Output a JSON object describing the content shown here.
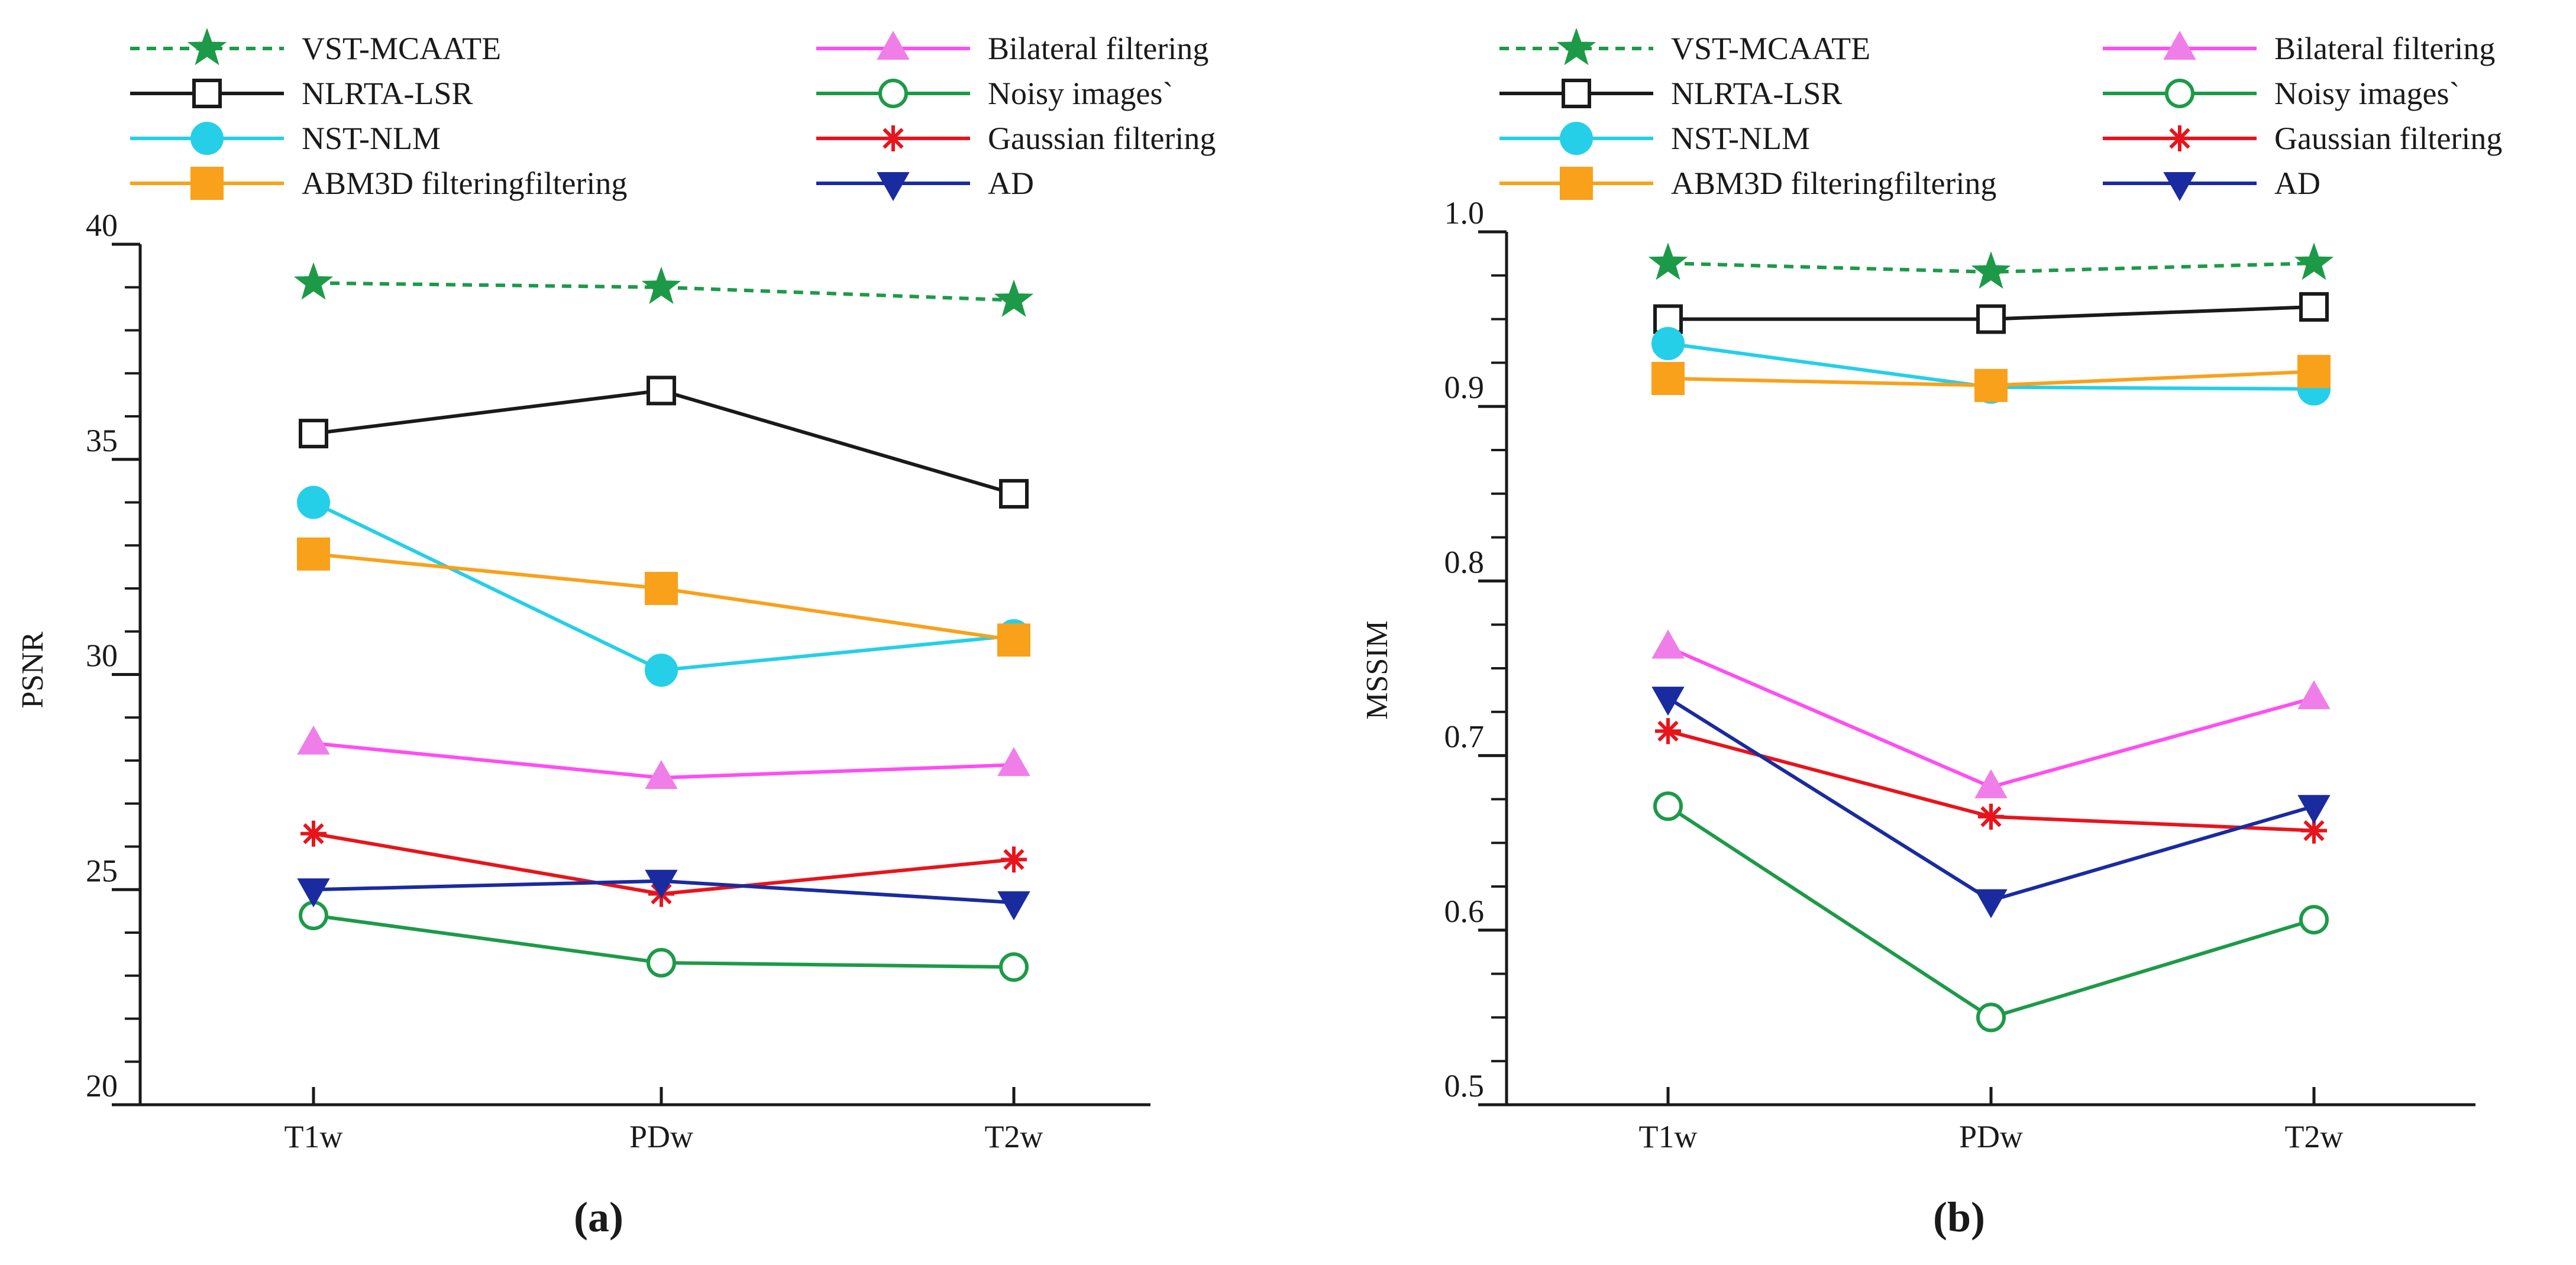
{
  "chart_data": [
    {
      "type": "line",
      "panel_label": "(a)",
      "title": "",
      "xlabel": "",
      "ylabel": "PSNR",
      "categories": [
        "T1w",
        "PDw",
        "T2w"
      ],
      "ylim": [
        20,
        40
      ],
      "yticks": [
        20,
        25,
        30,
        35,
        40
      ],
      "ytick_labels": [
        "20",
        "25",
        "30",
        "35",
        "40"
      ],
      "minor_step": 1,
      "grid": false,
      "legend_position": "top",
      "series": [
        {
          "name": "VST-MCAATE",
          "values": [
            39.1,
            39.0,
            38.7
          ]
        },
        {
          "name": "NLRTA-LSR",
          "values": [
            35.6,
            36.6,
            34.2
          ]
        },
        {
          "name": "NST-NLM",
          "values": [
            34.0,
            30.1,
            30.9
          ]
        },
        {
          "name": "ABM3D filteringfiltering",
          "values": [
            32.8,
            32.0,
            30.8
          ]
        },
        {
          "name": "Bilateral filtering",
          "values": [
            28.4,
            27.6,
            27.9
          ]
        },
        {
          "name": "Noisy images`",
          "values": [
            24.4,
            23.3,
            23.2
          ]
        },
        {
          "name": "Gaussian filtering",
          "values": [
            26.3,
            24.9,
            25.7
          ]
        },
        {
          "name": "AD",
          "values": [
            25.0,
            25.2,
            24.7
          ]
        }
      ]
    },
    {
      "type": "line",
      "panel_label": "(b)",
      "title": "",
      "xlabel": "",
      "ylabel": "MSSIM",
      "categories": [
        "T1w",
        "PDw",
        "T2w"
      ],
      "ylim": [
        0.5,
        1.0
      ],
      "yticks": [
        0.5,
        0.6,
        0.7,
        0.8,
        0.9,
        1.0
      ],
      "ytick_labels": [
        "0.5",
        "0.6",
        "0.7",
        "0.8",
        "0.9",
        "1.0"
      ],
      "minor_step": 0.025,
      "grid": false,
      "legend_position": "top",
      "series": [
        {
          "name": "VST-MCAATE",
          "values": [
            0.982,
            0.977,
            0.982
          ]
        },
        {
          "name": "NLRTA-LSR",
          "values": [
            0.95,
            0.95,
            0.957
          ]
        },
        {
          "name": "NST-NLM",
          "values": [
            0.936,
            0.911,
            0.91
          ]
        },
        {
          "name": "ABM3D filteringfiltering",
          "values": [
            0.916,
            0.912,
            0.92
          ]
        },
        {
          "name": "Bilateral filtering",
          "values": [
            0.762,
            0.682,
            0.733
          ]
        },
        {
          "name": "Noisy images`",
          "values": [
            0.671,
            0.55,
            0.606
          ]
        },
        {
          "name": "Gaussian filtering",
          "values": [
            0.714,
            0.665,
            0.657
          ]
        },
        {
          "name": "AD",
          "values": [
            0.733,
            0.617,
            0.671
          ]
        }
      ]
    }
  ],
  "series_styles": [
    {
      "name": "VST-MCAATE",
      "color": "#1d9a48",
      "marker_color": "#1d9a48",
      "marker": "star",
      "dash": "dashed"
    },
    {
      "name": "NLRTA-LSR",
      "color": "#1a1a1a",
      "marker_color": "#1a1a1a",
      "marker": "square-open",
      "dash": "solid"
    },
    {
      "name": "NST-NLM",
      "color": "#25cfe8",
      "marker_color": "#25cfe8",
      "marker": "circle-filled",
      "dash": "solid"
    },
    {
      "name": "ABM3D filteringfiltering",
      "color": "#f9a11b",
      "marker_color": "#f9a11b",
      "marker": "square-filled",
      "dash": "solid"
    },
    {
      "name": "Bilateral filtering",
      "color": "#ff4df3",
      "marker_color": "#f07ee8",
      "marker": "triangle-up",
      "dash": "solid"
    },
    {
      "name": "Noisy images`",
      "color": "#1d9a48",
      "marker_color": "#1d9a48",
      "marker": "circle-open",
      "dash": "solid"
    },
    {
      "name": "Gaussian filtering",
      "color": "#e8141c",
      "marker_color": "#e8141c",
      "marker": "asterisk",
      "dash": "solid"
    },
    {
      "name": "AD",
      "color": "#1a2ba0",
      "marker_color": "#1a2ba0",
      "marker": "triangle-down",
      "dash": "solid"
    }
  ]
}
